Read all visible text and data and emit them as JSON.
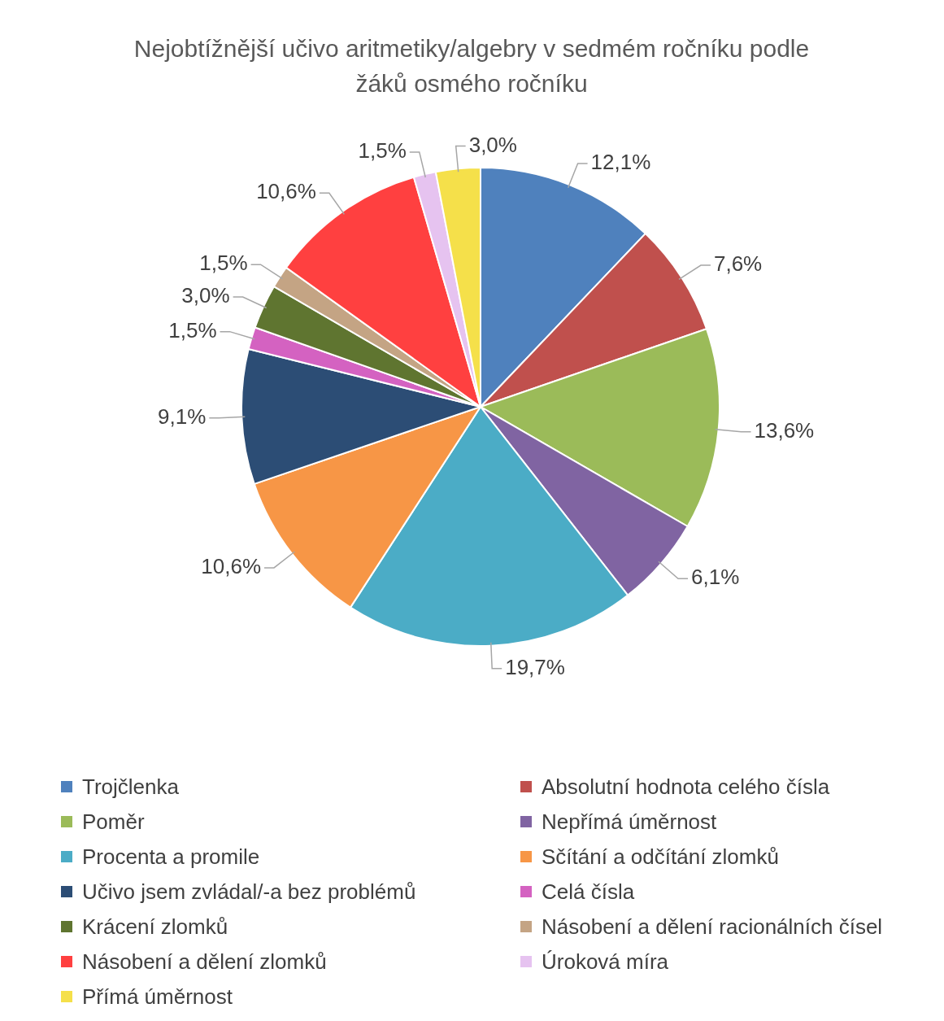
{
  "chart_data": {
    "type": "pie",
    "title": "Nejobtížnější učivo aritmetiky/algebry v sedmém ročníku podle žáků osmého ročníku",
    "categories": [
      "Trojčlenka",
      "Absolutní hodnota celého čísla",
      "Poměr",
      "Nepřímá úměrnost",
      "Procenta a promile",
      "Sčítání a odčítání zlomků",
      "Učivo jsem zvládal/-a bez problémů",
      "Celá čísla",
      "Krácení zlomků",
      "Násobení a dělení racionálních čísel",
      "Násobení a dělení zlomků",
      "Úroková míra",
      "Přímá úměrnost"
    ],
    "values": [
      12.1,
      7.6,
      13.6,
      6.1,
      19.7,
      10.6,
      9.1,
      1.5,
      3.0,
      1.5,
      10.6,
      1.5,
      3.0
    ],
    "value_labels": [
      "12,1%",
      "7,6%",
      "13,6%",
      "6,1%",
      "19,7%",
      "10,6%",
      "9,1%",
      "1,5%",
      "3,0%",
      "1,5%",
      "10,6%",
      "1,5%",
      "3,0%"
    ],
    "colors": [
      "#4f81bd",
      "#c0504d",
      "#9bbb59",
      "#8064a2",
      "#4bacc6",
      "#f79646",
      "#2c4d75",
      "#d462c1",
      "#5f7530",
      "#c4a484",
      "#ff4040",
      "#e6c3f0",
      "#f5e04a"
    ],
    "legend": "bottom"
  }
}
